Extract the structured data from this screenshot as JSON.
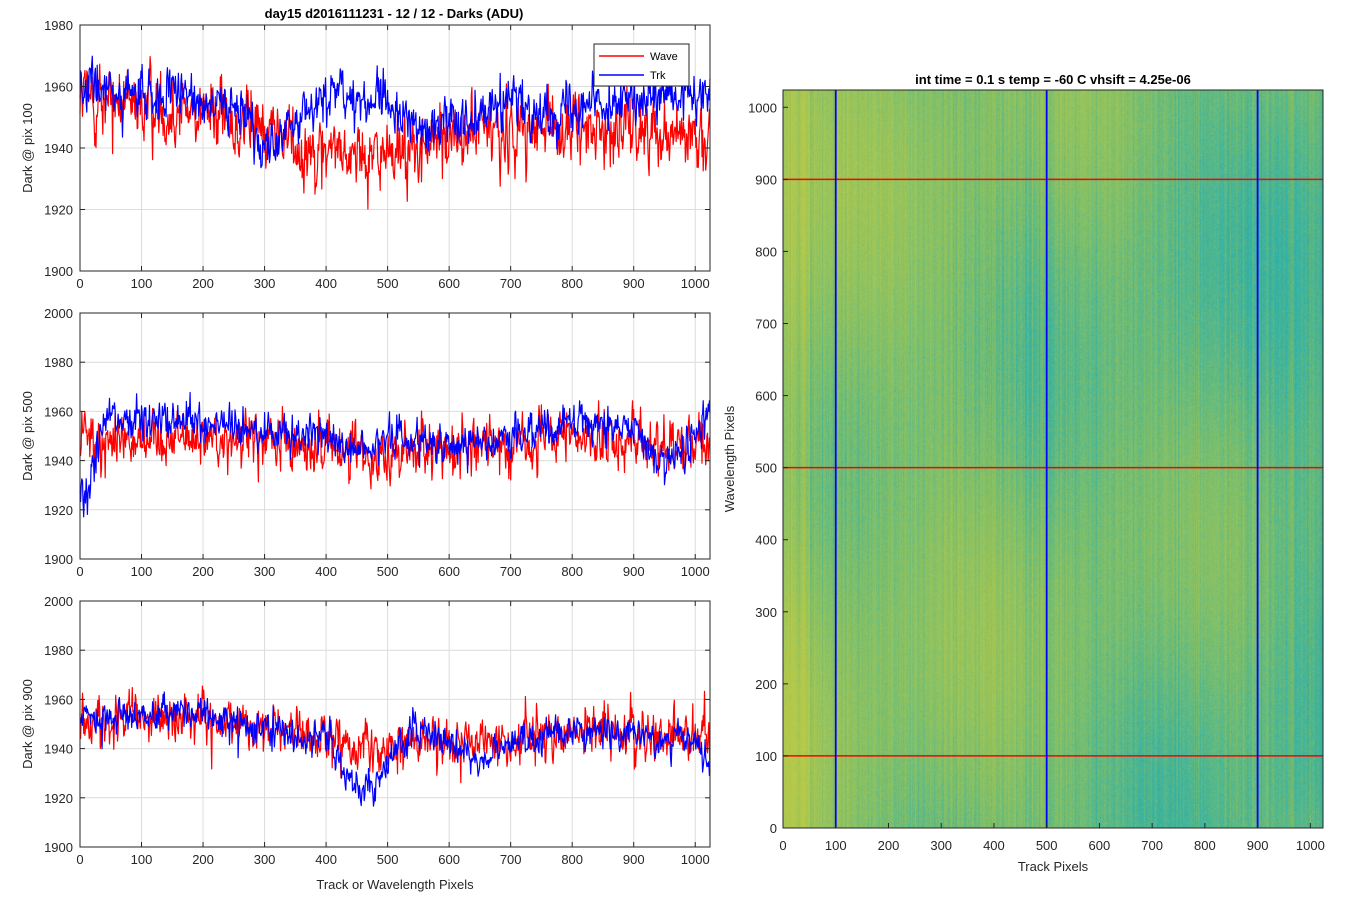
{
  "figure": {
    "title": "day15 d2016111231 - 12 / 12 - Darks (ADU)"
  },
  "chart_data": [
    {
      "type": "line",
      "id": "dark-pix-100",
      "title": "day15 d2016111231 - 12 / 12 - Darks (ADU)",
      "xlabel": "",
      "ylabel": "Dark @ pix 100",
      "xlim": [
        0,
        1024
      ],
      "ylim": [
        1900,
        1980
      ],
      "xticks": [
        0,
        100,
        200,
        300,
        400,
        500,
        600,
        700,
        800,
        900,
        1000
      ],
      "yticks": [
        1900,
        1920,
        1940,
        1960,
        1980
      ],
      "grid": true,
      "legend": {
        "placement": "top-right",
        "entries": [
          "Wave",
          "Trk"
        ]
      },
      "series": [
        {
          "name": "Wave",
          "color": "#ff0000",
          "baseline": 1951,
          "noise": 10,
          "profile": [
            [
              0,
              1957
            ],
            [
              100,
              1953
            ],
            [
              200,
              1952
            ],
            [
              300,
              1946
            ],
            [
              350,
              1942
            ],
            [
              400,
              1940
            ],
            [
              450,
              1938
            ],
            [
              500,
              1937
            ],
            [
              550,
              1939
            ],
            [
              600,
              1944
            ],
            [
              700,
              1946
            ],
            [
              800,
              1946
            ],
            [
              900,
              1946
            ],
            [
              1024,
              1946
            ]
          ]
        },
        {
          "name": "Trk",
          "color": "#0000ff",
          "baseline": 1955,
          "noise": 7,
          "profile": [
            [
              0,
              1960
            ],
            [
              100,
              1957
            ],
            [
              200,
              1956
            ],
            [
              280,
              1950
            ],
            [
              300,
              1940
            ],
            [
              330,
              1942
            ],
            [
              360,
              1952
            ],
            [
              400,
              1956
            ],
            [
              500,
              1955
            ],
            [
              560,
              1944
            ],
            [
              600,
              1950
            ],
            [
              700,
              1955
            ],
            [
              760,
              1950
            ],
            [
              800,
              1956
            ],
            [
              900,
              1955
            ],
            [
              1024,
              1957
            ]
          ]
        }
      ]
    },
    {
      "type": "line",
      "id": "dark-pix-500",
      "xlabel": "",
      "ylabel": "Dark @ pix 500",
      "xlim": [
        0,
        1024
      ],
      "ylim": [
        1900,
        2000
      ],
      "xticks": [
        0,
        100,
        200,
        300,
        400,
        500,
        600,
        700,
        800,
        900,
        1000
      ],
      "yticks": [
        1900,
        1920,
        1940,
        1960,
        1980,
        2000
      ],
      "grid": true,
      "series": [
        {
          "name": "Wave",
          "color": "#ff0000",
          "baseline": 1947,
          "noise": 10,
          "profile": [
            [
              0,
              1950
            ],
            [
              200,
              1950
            ],
            [
              400,
              1945
            ],
            [
              500,
              1943
            ],
            [
              600,
              1946
            ],
            [
              800,
              1949
            ],
            [
              1024,
              1947
            ]
          ]
        },
        {
          "name": "Trk",
          "color": "#0000ff",
          "baseline": 1952,
          "noise": 7,
          "profile": [
            [
              0,
              1925
            ],
            [
              15,
              1930
            ],
            [
              40,
              1958
            ],
            [
              200,
              1955
            ],
            [
              300,
              1952
            ],
            [
              400,
              1950
            ],
            [
              450,
              1943
            ],
            [
              500,
              1950
            ],
            [
              600,
              1946
            ],
            [
              700,
              1950
            ],
            [
              800,
              1956
            ],
            [
              900,
              1954
            ],
            [
              950,
              1938
            ],
            [
              1000,
              1948
            ],
            [
              1024,
              1960
            ]
          ]
        }
      ]
    },
    {
      "type": "line",
      "id": "dark-pix-900",
      "xlabel": "Track or Wavelength Pixels",
      "ylabel": "Dark @ pix 900",
      "xlim": [
        0,
        1024
      ],
      "ylim": [
        1900,
        2000
      ],
      "xticks": [
        0,
        100,
        200,
        300,
        400,
        500,
        600,
        700,
        800,
        900,
        1000
      ],
      "yticks": [
        1900,
        1920,
        1940,
        1960,
        1980,
        2000
      ],
      "grid": true,
      "series": [
        {
          "name": "Wave",
          "color": "#ff0000",
          "baseline": 1948,
          "noise": 9,
          "profile": [
            [
              0,
              1952
            ],
            [
              200,
              1952
            ],
            [
              300,
              1948
            ],
            [
              400,
              1944
            ],
            [
              500,
              1940
            ],
            [
              600,
              1942
            ],
            [
              800,
              1948
            ],
            [
              1024,
              1944
            ]
          ]
        },
        {
          "name": "Trk",
          "color": "#0000ff",
          "baseline": 1948,
          "noise": 6,
          "profile": [
            [
              0,
              1952
            ],
            [
              200,
              1955
            ],
            [
              300,
              1948
            ],
            [
              400,
              1944
            ],
            [
              430,
              1930
            ],
            [
              460,
              1922
            ],
            [
              500,
              1935
            ],
            [
              540,
              1948
            ],
            [
              600,
              1943
            ],
            [
              650,
              1935
            ],
            [
              700,
              1943
            ],
            [
              800,
              1948
            ],
            [
              900,
              1946
            ],
            [
              1000,
              1942
            ],
            [
              1024,
              1928
            ]
          ]
        }
      ]
    },
    {
      "type": "heatmap",
      "id": "dark-frame-image",
      "title": "int time = 0.1 s   temp = -60 C   vhsift = 4.25e-06",
      "xlabel": "Track Pixels",
      "ylabel": "Wavelength Pixels",
      "xlim": [
        0,
        1024
      ],
      "ylim": [
        0,
        1024
      ],
      "xticks": [
        0,
        100,
        200,
        300,
        400,
        500,
        600,
        700,
        800,
        900,
        1000
      ],
      "yticks": [
        0,
        100,
        200,
        300,
        400,
        500,
        600,
        700,
        800,
        900,
        1000
      ],
      "colormap": "parula",
      "colors": {
        "warm": "#b5c94a",
        "mid": "#7fbf6a",
        "cool": "#2fb0a8"
      },
      "vertical_lines": {
        "color": "#0000ff",
        "x": [
          100,
          500,
          900
        ]
      },
      "horizontal_lines": {
        "color": "#ff0000",
        "y": [
          100,
          500,
          900
        ]
      }
    }
  ]
}
